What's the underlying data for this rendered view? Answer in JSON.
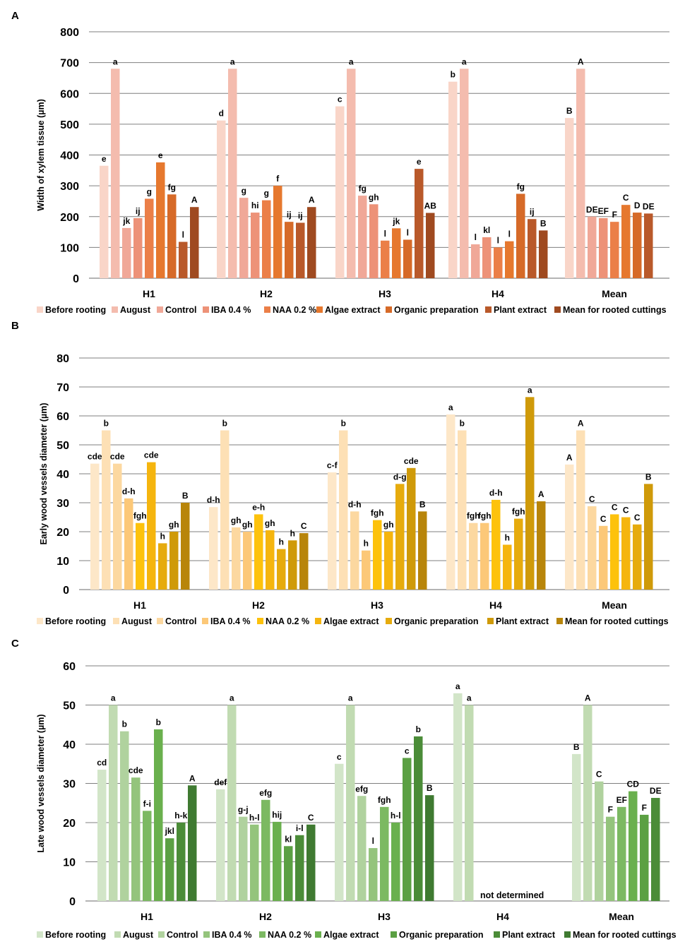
{
  "legend_labels": [
    "Before rooting",
    "August",
    "Control",
    "IBA 0.4 %",
    "NAA 0.2 %",
    "Algae extract",
    "Organic preparation",
    "Plant extract",
    "Mean for rooted cuttings"
  ],
  "chart_data": [
    {
      "panel": "A",
      "type": "bar",
      "ylabel": "Width of xylem tissue (µm)",
      "ylim": [
        0,
        800
      ],
      "yticks": [
        0,
        100,
        200,
        300,
        400,
        500,
        600,
        700,
        800
      ],
      "categories": [
        "H1",
        "H2",
        "H3",
        "H4",
        "Mean"
      ],
      "colors": [
        "#f9d5c8",
        "#f4bcae",
        "#f0a898",
        "#ed9278",
        "#eb7f48",
        "#e6782e",
        "#d66a28",
        "#b9592a",
        "#9f4a20"
      ],
      "series": [
        {
          "name": "Before rooting",
          "values": [
            365,
            512,
            558,
            638,
            520
          ],
          "labels": [
            "e",
            "d",
            "c",
            "b",
            "B"
          ]
        },
        {
          "name": "August",
          "values": [
            680,
            680,
            680,
            680,
            680
          ],
          "labels": [
            "a",
            "a",
            "a",
            "a",
            "A"
          ]
        },
        {
          "name": "Control",
          "values": [
            163,
            261,
            268,
            110,
            200
          ],
          "labels": [
            "jk",
            "g",
            "fg",
            "l",
            "DE"
          ]
        },
        {
          "name": "IBA 0.4 %",
          "values": [
            195,
            213,
            240,
            133,
            195
          ],
          "labels": [
            "ij",
            "hi",
            "gh",
            "kl",
            "EF"
          ]
        },
        {
          "name": "NAA 0.2 %",
          "values": [
            258,
            253,
            122,
            100,
            183
          ],
          "labels": [
            "g",
            "g",
            "l",
            "l",
            "F"
          ]
        },
        {
          "name": "Algae extract",
          "values": [
            376,
            300,
            162,
            120,
            238
          ],
          "labels": [
            "e",
            "f",
            "jk",
            "l",
            "C"
          ]
        },
        {
          "name": "Organic preparation",
          "values": [
            272,
            183,
            125,
            274,
            213
          ],
          "labels": [
            "fg",
            "ij",
            "l",
            "fg",
            "D"
          ]
        },
        {
          "name": "Plant extract",
          "values": [
            118,
            180,
            355,
            192,
            210
          ],
          "labels": [
            "l",
            "ij",
            "e",
            "ij",
            "DE"
          ]
        },
        {
          "name": "Mean for rooted cuttings",
          "values": [
            231,
            231,
            212,
            155,
            null
          ],
          "labels": [
            "A",
            "A",
            "AB",
            "B",
            ""
          ]
        }
      ]
    },
    {
      "panel": "B",
      "type": "bar",
      "ylabel": "Early wood vessels diameter (µm)",
      "ylim": [
        0,
        80
      ],
      "yticks": [
        0,
        10,
        20,
        30,
        40,
        50,
        60,
        70,
        80
      ],
      "categories": [
        "H1",
        "H2",
        "H3",
        "H4",
        "Mean"
      ],
      "colors": [
        "#fde7c8",
        "#fde0b5",
        "#fcd8a0",
        "#fcc878",
        "#fdc20c",
        "#f5b50e",
        "#e6ab0d",
        "#cf9a09",
        "#b8850a"
      ],
      "series": [
        {
          "name": "Before rooting",
          "values": [
            43.5,
            28.5,
            40.5,
            60.5,
            43.2
          ],
          "labels": [
            "cde",
            "d-h",
            "c-f",
            "a",
            "A"
          ]
        },
        {
          "name": "August",
          "values": [
            55,
            55,
            55,
            55,
            55
          ],
          "labels": [
            "b",
            "b",
            "b",
            "b",
            "A"
          ]
        },
        {
          "name": "Control",
          "values": [
            43.5,
            21.5,
            27,
            23,
            28.8
          ],
          "labels": [
            "cde",
            "gh",
            "d-h",
            "fgh",
            "C"
          ]
        },
        {
          "name": "IBA 0.4 %",
          "values": [
            31.5,
            20,
            13.5,
            23,
            22
          ],
          "labels": [
            "d-h",
            "gh",
            "h",
            "fgh",
            "C"
          ]
        },
        {
          "name": "NAA 0.2 %",
          "values": [
            23,
            26,
            24,
            31,
            26
          ],
          "labels": [
            "fgh",
            "e-h",
            "fgh",
            "d-h",
            "C"
          ]
        },
        {
          "name": "Algae extract",
          "values": [
            44,
            20.5,
            20,
            15.5,
            25
          ],
          "labels": [
            "cde",
            "gh",
            "gh",
            "h",
            "C"
          ]
        },
        {
          "name": "Organic preparation",
          "values": [
            16,
            14,
            36.5,
            24.5,
            22.5
          ],
          "labels": [
            "h",
            "h",
            "d-g",
            "fgh",
            "C"
          ]
        },
        {
          "name": "Plant extract",
          "values": [
            20,
            17,
            42,
            66.5,
            36.5
          ],
          "labels": [
            "gh",
            "h",
            "cde",
            "a",
            "B"
          ]
        },
        {
          "name": "Mean for rooted cuttings",
          "values": [
            30,
            19.5,
            27,
            30.5,
            null
          ],
          "labels": [
            "B",
            "C",
            "B",
            "A",
            ""
          ]
        }
      ]
    },
    {
      "panel": "C",
      "type": "bar",
      "ylabel": "Late wood vessels diameter (µm)",
      "ylim": [
        0,
        60
      ],
      "yticks": [
        0,
        10,
        20,
        30,
        40,
        50,
        60
      ],
      "categories": [
        "H1",
        "H2",
        "H3",
        "H4",
        "Mean"
      ],
      "annotation": "not determined",
      "colors": [
        "#d2e5c8",
        "#c1dbb2",
        "#b0d29e",
        "#94c47c",
        "#7cb962",
        "#6ab04e",
        "#5ba043",
        "#4b8c38",
        "#3f7a31"
      ],
      "series": [
        {
          "name": "Before rooting",
          "values": [
            33.5,
            28.5,
            35,
            53,
            37.5
          ],
          "labels": [
            "cd",
            "def",
            "c",
            "a",
            "B"
          ]
        },
        {
          "name": "August",
          "values": [
            50,
            50,
            50,
            50,
            50
          ],
          "labels": [
            "a",
            "a",
            "a",
            "a",
            "A"
          ]
        },
        {
          "name": "Control",
          "values": [
            43.3,
            21.5,
            26.8,
            null,
            30.5
          ],
          "labels": [
            "b",
            "g-j",
            "efg",
            "",
            "C"
          ]
        },
        {
          "name": "IBA 0.4 %",
          "values": [
            31.5,
            19.5,
            13.5,
            null,
            21.5
          ],
          "labels": [
            "cde",
            "h-l",
            "l",
            "",
            "F"
          ]
        },
        {
          "name": "NAA 0.2 %",
          "values": [
            23,
            25.8,
            24,
            null,
            24
          ],
          "labels": [
            "f-i",
            "efg",
            "fgh",
            "",
            "EF"
          ]
        },
        {
          "name": "Algae extract",
          "values": [
            43.8,
            20.2,
            20,
            null,
            28
          ],
          "labels": [
            "b",
            "hij",
            "h-l",
            "",
            "CD"
          ]
        },
        {
          "name": "Organic preparation",
          "values": [
            16,
            14,
            36.5,
            null,
            22
          ],
          "labels": [
            "jkl",
            "kl",
            "c",
            "",
            "F"
          ]
        },
        {
          "name": "Plant extract",
          "values": [
            20,
            16.8,
            42,
            null,
            26.3
          ],
          "labels": [
            "h-k",
            "i-l",
            "b",
            "",
            "DE"
          ]
        },
        {
          "name": "Mean for rooted cuttings",
          "values": [
            29.5,
            19.5,
            27,
            null,
            null
          ],
          "labels": [
            "A",
            "C",
            "B",
            "",
            ""
          ]
        }
      ]
    }
  ]
}
